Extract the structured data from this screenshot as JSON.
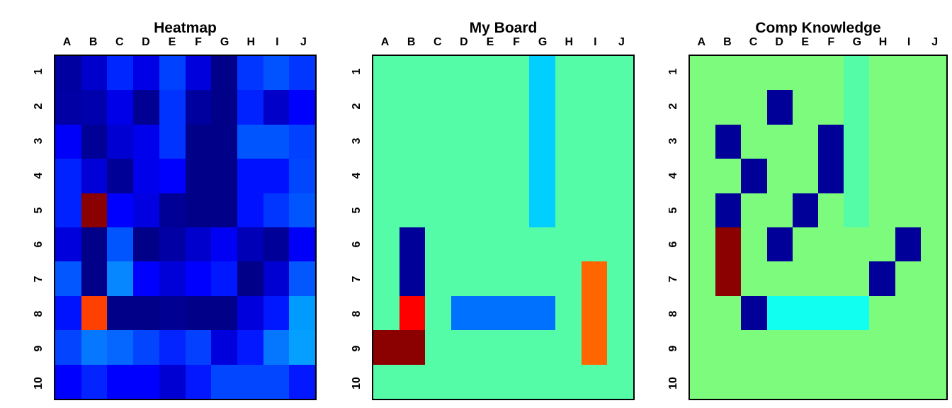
{
  "figure": {
    "background": "#FFFFFF",
    "label_color": "#000000",
    "border_color": "#000000"
  },
  "chart_data": [
    {
      "type": "heatmap",
      "title": "Heatmap",
      "x_labels": [
        "A",
        "B",
        "C",
        "D",
        "E",
        "F",
        "G",
        "H",
        "I",
        "J"
      ],
      "y_labels": [
        "1",
        "2",
        "3",
        "4",
        "5",
        "6",
        "7",
        "8",
        "9",
        "10"
      ],
      "legend": "none",
      "cell_colors": [
        [
          "#0000A0",
          "#0000CC",
          "#0026FF",
          "#0000E6",
          "#0040FF",
          "#0000DC",
          "#000089",
          "#0036FF",
          "#0053FF",
          "#0036FF"
        ],
        [
          "#0000A5",
          "#0000AD",
          "#0000E8",
          "#000092",
          "#0033FF",
          "#00009E",
          "#000089",
          "#0022FF",
          "#0000C8",
          "#0000FF"
        ],
        [
          "#0000FA",
          "#000096",
          "#0000D2",
          "#0000ED",
          "#0033FF",
          "#000089",
          "#000089",
          "#0055FF",
          "#0055FF",
          "#0040FF"
        ],
        [
          "#0022FF",
          "#0000D7",
          "#000096",
          "#0000ED",
          "#0000FF",
          "#000089",
          "#000089",
          "#0011FF",
          "#0011FF",
          "#0046FF"
        ],
        [
          "#0022FF",
          "#8B0000",
          "#0000FF",
          "#0000E0",
          "#000096",
          "#000089",
          "#000089",
          "#0011FF",
          "#0036FF",
          "#0055FF"
        ],
        [
          "#0000DC",
          "#000089",
          "#0055FF",
          "#000089",
          "#0000A5",
          "#0000CC",
          "#0000F5",
          "#0000B6",
          "#000098",
          "#0000FA"
        ],
        [
          "#0357FF",
          "#000089",
          "#0787FF",
          "#0000FF",
          "#0000D8",
          "#0000FF",
          "#0018FF",
          "#000089",
          "#0000D2",
          "#0357FF"
        ],
        [
          "#0013FF",
          "#FF4000",
          "#000089",
          "#000089",
          "#000092",
          "#000089",
          "#000089",
          "#0000DC",
          "#0018FF",
          "#009BFF"
        ],
        [
          "#0345FF",
          "#0578FF",
          "#0567FF",
          "#0345FF",
          "#0323FF",
          "#0340FF",
          "#0000DC",
          "#0318FF",
          "#0577FF",
          "#05A0FF"
        ],
        [
          "#0000FF",
          "#0323FF",
          "#0000FF",
          "#0000FF",
          "#0000D2",
          "#0318FF",
          "#0346FF",
          "#0346FF",
          "#0346FF",
          "#0318FF"
        ]
      ]
    },
    {
      "type": "heatmap",
      "title": "My Board",
      "x_labels": [
        "A",
        "B",
        "C",
        "D",
        "E",
        "F",
        "G",
        "H",
        "I",
        "J"
      ],
      "y_labels": [
        "1",
        "2",
        "3",
        "4",
        "5",
        "6",
        "7",
        "8",
        "9",
        "10"
      ],
      "legend": "none",
      "background_color": "#54FCA8",
      "cell_colors": [
        [
          "#54FCA8",
          "#54FCA8",
          "#54FCA8",
          "#54FCA8",
          "#54FCA8",
          "#54FCA8",
          "#00CFFF",
          "#54FCA8",
          "#54FCA8",
          "#54FCA8"
        ],
        [
          "#54FCA8",
          "#54FCA8",
          "#54FCA8",
          "#54FCA8",
          "#54FCA8",
          "#54FCA8",
          "#00CFFF",
          "#54FCA8",
          "#54FCA8",
          "#54FCA8"
        ],
        [
          "#54FCA8",
          "#54FCA8",
          "#54FCA8",
          "#54FCA8",
          "#54FCA8",
          "#54FCA8",
          "#00CFFF",
          "#54FCA8",
          "#54FCA8",
          "#54FCA8"
        ],
        [
          "#54FCA8",
          "#54FCA8",
          "#54FCA8",
          "#54FCA8",
          "#54FCA8",
          "#54FCA8",
          "#00CFFF",
          "#54FCA8",
          "#54FCA8",
          "#54FCA8"
        ],
        [
          "#54FCA8",
          "#54FCA8",
          "#54FCA8",
          "#54FCA8",
          "#54FCA8",
          "#54FCA8",
          "#00CFFF",
          "#54FCA8",
          "#54FCA8",
          "#54FCA8"
        ],
        [
          "#54FCA8",
          "#000099",
          "#54FCA8",
          "#54FCA8",
          "#54FCA8",
          "#54FCA8",
          "#54FCA8",
          "#54FCA8",
          "#54FCA8",
          "#54FCA8"
        ],
        [
          "#54FCA8",
          "#000099",
          "#54FCA8",
          "#54FCA8",
          "#54FCA8",
          "#54FCA8",
          "#54FCA8",
          "#54FCA8",
          "#FF6600",
          "#54FCA8"
        ],
        [
          "#54FCA8",
          "#FF0000",
          "#54FCA8",
          "#0070FF",
          "#0070FF",
          "#0070FF",
          "#0070FF",
          "#54FCA8",
          "#FF6600",
          "#54FCA8"
        ],
        [
          "#8B0000",
          "#8B0000",
          "#54FCA8",
          "#54FCA8",
          "#54FCA8",
          "#54FCA8",
          "#54FCA8",
          "#54FCA8",
          "#FF6600",
          "#54FCA8"
        ],
        [
          "#54FCA8",
          "#54FCA8",
          "#54FCA8",
          "#54FCA8",
          "#54FCA8",
          "#54FCA8",
          "#54FCA8",
          "#54FCA8",
          "#54FCA8",
          "#54FCA8"
        ]
      ]
    },
    {
      "type": "heatmap",
      "title": "Comp Knowledge",
      "x_labels": [
        "A",
        "B",
        "C",
        "D",
        "E",
        "F",
        "G",
        "H",
        "I",
        "J"
      ],
      "y_labels": [
        "1",
        "2",
        "3",
        "4",
        "5",
        "6",
        "7",
        "8",
        "9",
        "10"
      ],
      "legend": "none",
      "background_color": "#7DFB7D",
      "cell_colors": [
        [
          "#7DFB7D",
          "#7DFB7D",
          "#7DFB7D",
          "#7DFB7D",
          "#7DFB7D",
          "#7DFB7D",
          "#54FCA8",
          "#7DFB7D",
          "#7DFB7D",
          "#7DFB7D"
        ],
        [
          "#7DFB7D",
          "#7DFB7D",
          "#7DFB7D",
          "#000099",
          "#7DFB7D",
          "#7DFB7D",
          "#54FCA8",
          "#7DFB7D",
          "#7DFB7D",
          "#7DFB7D"
        ],
        [
          "#7DFB7D",
          "#000099",
          "#7DFB7D",
          "#7DFB7D",
          "#7DFB7D",
          "#000099",
          "#54FCA8",
          "#7DFB7D",
          "#7DFB7D",
          "#7DFB7D"
        ],
        [
          "#7DFB7D",
          "#7DFB7D",
          "#000099",
          "#7DFB7D",
          "#7DFB7D",
          "#000099",
          "#54FCA8",
          "#7DFB7D",
          "#7DFB7D",
          "#7DFB7D"
        ],
        [
          "#7DFB7D",
          "#000099",
          "#7DFB7D",
          "#7DFB7D",
          "#000099",
          "#7DFB7D",
          "#54FCA8",
          "#7DFB7D",
          "#7DFB7D",
          "#7DFB7D"
        ],
        [
          "#7DFB7D",
          "#8B0000",
          "#7DFB7D",
          "#000099",
          "#7DFB7D",
          "#7DFB7D",
          "#7DFB7D",
          "#7DFB7D",
          "#000099",
          "#7DFB7D"
        ],
        [
          "#7DFB7D",
          "#8B0000",
          "#7DFB7D",
          "#7DFB7D",
          "#7DFB7D",
          "#7DFB7D",
          "#7DFB7D",
          "#000099",
          "#7DFB7D",
          "#7DFB7D"
        ],
        [
          "#7DFB7D",
          "#7DFB7D",
          "#000099",
          "#10FFF0",
          "#10FFF0",
          "#10FFF0",
          "#10FFF0",
          "#7DFB7D",
          "#7DFB7D",
          "#7DFB7D"
        ],
        [
          "#7DFB7D",
          "#7DFB7D",
          "#7DFB7D",
          "#7DFB7D",
          "#7DFB7D",
          "#7DFB7D",
          "#7DFB7D",
          "#7DFB7D",
          "#7DFB7D",
          "#7DFB7D"
        ],
        [
          "#7DFB7D",
          "#7DFB7D",
          "#7DFB7D",
          "#7DFB7D",
          "#7DFB7D",
          "#7DFB7D",
          "#7DFB7D",
          "#7DFB7D",
          "#7DFB7D",
          "#7DFB7D"
        ]
      ]
    }
  ]
}
